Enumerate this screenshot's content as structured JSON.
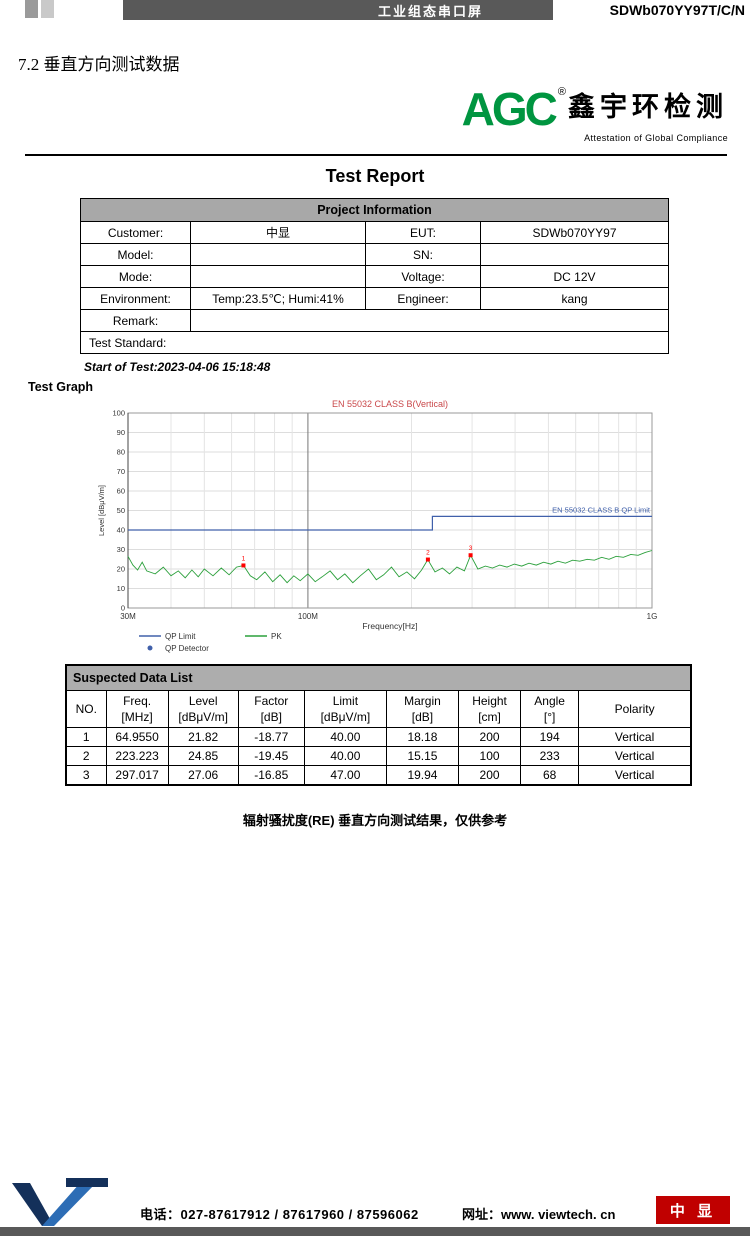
{
  "topbar": {
    "product_type": "工业组态串口屏",
    "model": "SDWb070YY97T/C/N"
  },
  "heading": "7.2 垂直方向测试数据",
  "logo": {
    "name": "AGC",
    "reg": "®",
    "cn": "鑫宇环检测",
    "tagline": "Attestation of Global Compliance"
  },
  "report": {
    "title": "Test Report",
    "project_info": {
      "header": "Project Information",
      "rows": [
        {
          "label1": "Customer:",
          "value1": "中显",
          "label2": "EUT:",
          "value2": "SDWb070YY97"
        },
        {
          "label1": "Model:",
          "value1": "",
          "label2": "SN:",
          "value2": ""
        },
        {
          "label1": "Mode:",
          "value1": "",
          "label2": "Voltage:",
          "value2": "DC 12V"
        },
        {
          "label1": "Environment:",
          "value1": "Temp:23.5℃; Humi:41%",
          "label2": "Engineer:",
          "value2": "kang"
        },
        {
          "label1": "Remark:",
          "value1": "",
          "label2": "",
          "value2": ""
        }
      ],
      "full_rows": [
        "Test Standard:"
      ]
    },
    "start_of_test": "Start of Test:2023-04-06 15:18:48",
    "graph_label": "Test Graph"
  },
  "chart_data": {
    "type": "line",
    "title": "EN 55032 CLASS B(Vertical)",
    "xlabel": "Frequency[Hz]",
    "ylabel": "Level [dBμV/m]",
    "x_scale": "log",
    "x_ticks": [
      {
        "label": "30M",
        "mhz": 30
      },
      {
        "label": "100M",
        "mhz": 100
      },
      {
        "label": "1G",
        "mhz": 1000
      }
    ],
    "ylim": [
      0,
      100
    ],
    "y_tick_step": 10,
    "annotation": "EN 55032 CLASS B QP Limit",
    "colors": {
      "pk": "#2ca03c",
      "limit": "#4060aa",
      "marker": "#ff0000",
      "title": "#c9484a",
      "annotation": "#4060aa"
    },
    "limit": {
      "name": "QP Limit",
      "points": [
        [
          30,
          40
        ],
        [
          230,
          40
        ],
        [
          230,
          47
        ],
        [
          1000,
          47
        ]
      ]
    },
    "series": [
      {
        "name": "PK",
        "points": [
          [
            30,
            26.5
          ],
          [
            31,
            22
          ],
          [
            32,
            19.5
          ],
          [
            33,
            23.5
          ],
          [
            34,
            19
          ],
          [
            36,
            17.5
          ],
          [
            38,
            21
          ],
          [
            40,
            16.5
          ],
          [
            42,
            19
          ],
          [
            44,
            15.5
          ],
          [
            46,
            19.5
          ],
          [
            48,
            16
          ],
          [
            50,
            20
          ],
          [
            53,
            16.5
          ],
          [
            56,
            20.5
          ],
          [
            59,
            17
          ],
          [
            62,
            21
          ],
          [
            65,
            21.8
          ],
          [
            68,
            16.5
          ],
          [
            71,
            14.5
          ],
          [
            75,
            18.5
          ],
          [
            79,
            13.5
          ],
          [
            83,
            17
          ],
          [
            87,
            13
          ],
          [
            91,
            16.5
          ],
          [
            95,
            14
          ],
          [
            100,
            17.5
          ],
          [
            105,
            13.5
          ],
          [
            110,
            16
          ],
          [
            116,
            19
          ],
          [
            122,
            14.5
          ],
          [
            128,
            17.5
          ],
          [
            135,
            13
          ],
          [
            142,
            16.5
          ],
          [
            150,
            20
          ],
          [
            158,
            14.5
          ],
          [
            166,
            17
          ],
          [
            175,
            21
          ],
          [
            184,
            16
          ],
          [
            194,
            18.5
          ],
          [
            204,
            15
          ],
          [
            214,
            19.5
          ],
          [
            223,
            24.8
          ],
          [
            234,
            18.5
          ],
          [
            246,
            20.5
          ],
          [
            258,
            17.5
          ],
          [
            271,
            21
          ],
          [
            285,
            19
          ],
          [
            297,
            27
          ],
          [
            312,
            20
          ],
          [
            328,
            21.5
          ],
          [
            344,
            20.5
          ],
          [
            361,
            22
          ],
          [
            379,
            21
          ],
          [
            398,
            22.5
          ],
          [
            418,
            21.5
          ],
          [
            439,
            23
          ],
          [
            461,
            22
          ],
          [
            484,
            23.5
          ],
          [
            508,
            22.5
          ],
          [
            533,
            24
          ],
          [
            560,
            23
          ],
          [
            588,
            24.5
          ],
          [
            617,
            24
          ],
          [
            648,
            25
          ],
          [
            680,
            24.5
          ],
          [
            714,
            26
          ],
          [
            750,
            25
          ],
          [
            787,
            26.5
          ],
          [
            826,
            26
          ],
          [
            868,
            27.5
          ],
          [
            911,
            27
          ],
          [
            956,
            28.5
          ],
          [
            1000,
            29.5
          ]
        ]
      }
    ],
    "markers": [
      {
        "no": "1",
        "freq_mhz": 64.955,
        "level": 21.82
      },
      {
        "no": "2",
        "freq_mhz": 223.223,
        "level": 24.85
      },
      {
        "no": "3",
        "freq_mhz": 297.017,
        "level": 27.06
      }
    ],
    "legend": [
      {
        "label": "QP Limit",
        "symbol": "line",
        "color": "#4060aa"
      },
      {
        "label": "QP Detector",
        "symbol": "dot",
        "color": "#4060aa"
      },
      {
        "label": "PK",
        "symbol": "line",
        "color": "#2ca03c"
      }
    ]
  },
  "suspected": {
    "title": "Suspected Data List",
    "columns": [
      [
        "NO.",
        ""
      ],
      [
        "Freq.",
        "[MHz]"
      ],
      [
        "Level",
        "[dBμV/m]"
      ],
      [
        "Factor",
        "[dB]"
      ],
      [
        "Limit",
        "[dBμV/m]"
      ],
      [
        "Margin",
        "[dB]"
      ],
      [
        "Height",
        "[cm]"
      ],
      [
        "Angle",
        "[°]"
      ],
      [
        "Polarity",
        ""
      ]
    ],
    "rows": [
      [
        "1",
        "64.9550",
        "21.82",
        "-18.77",
        "40.00",
        "18.18",
        "200",
        "194",
        "Vertical"
      ],
      [
        "2",
        "223.223",
        "24.85",
        "-19.45",
        "40.00",
        "15.15",
        "100",
        "233",
        "Vertical"
      ],
      [
        "3",
        "297.017",
        "27.06",
        "-16.85",
        "47.00",
        "19.94",
        "200",
        "68",
        "Vertical"
      ]
    ]
  },
  "caption": "辐射骚扰度(RE)  垂直方向测试结果，仅供参考",
  "footer": {
    "phone": "电话：027-87617912 / 87617960 / 87596062",
    "web": "网址：www. viewtech. cn",
    "brand": "中 显"
  }
}
